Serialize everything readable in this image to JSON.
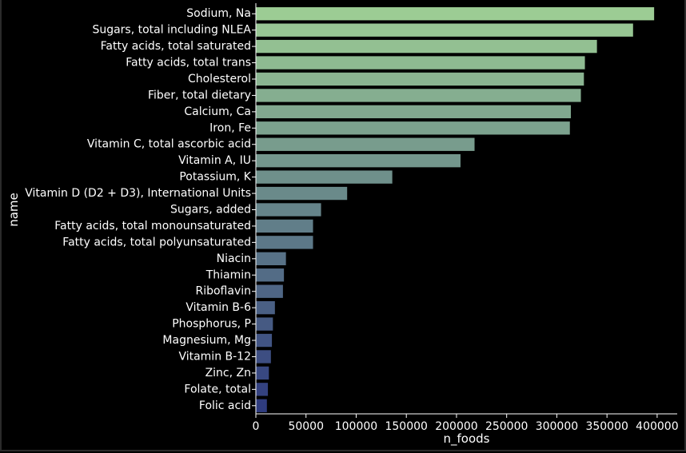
{
  "chart_data": {
    "type": "bar",
    "orientation": "horizontal",
    "xlabel": "n_foods",
    "ylabel": "name",
    "xlim": [
      0,
      420000
    ],
    "xticks": [
      0,
      50000,
      100000,
      150000,
      200000,
      250000,
      300000,
      350000,
      400000
    ],
    "xtick_labels": [
      "0",
      "50000",
      "100000",
      "150000",
      "200000",
      "250000",
      "300000",
      "350000",
      "400000"
    ],
    "categories": [
      "Sodium, Na",
      "Sugars, total including NLEA",
      "Fatty acids, total saturated",
      "Fatty acids, total trans",
      "Cholesterol",
      "Fiber, total dietary",
      "Calcium, Ca",
      "Iron, Fe",
      "Vitamin C, total ascorbic acid",
      "Vitamin A, IU",
      "Potassium, K",
      "Vitamin D (D2 + D3), International Units",
      "Sugars, added",
      "Fatty acids, total monounsaturated",
      "Fatty acids, total polyunsaturated",
      "Niacin",
      "Thiamin",
      "Riboflavin",
      "Vitamin B-6",
      "Phosphorus, P",
      "Magnesium, Mg",
      "Vitamin B-12",
      "Zinc, Zn",
      "Folate, total",
      "Folic acid"
    ],
    "values": [
      397000,
      376000,
      340000,
      328000,
      327000,
      324000,
      314000,
      313000,
      218000,
      204000,
      136000,
      91000,
      65000,
      57000,
      57000,
      30000,
      28000,
      27000,
      19000,
      17000,
      16000,
      15000,
      13000,
      12000,
      11000
    ],
    "palette": "crest",
    "color_start": "#9ccc94",
    "color_end": "#2f3c7f",
    "grid": false,
    "background": "#000000",
    "text_color": "#ffffff"
  }
}
